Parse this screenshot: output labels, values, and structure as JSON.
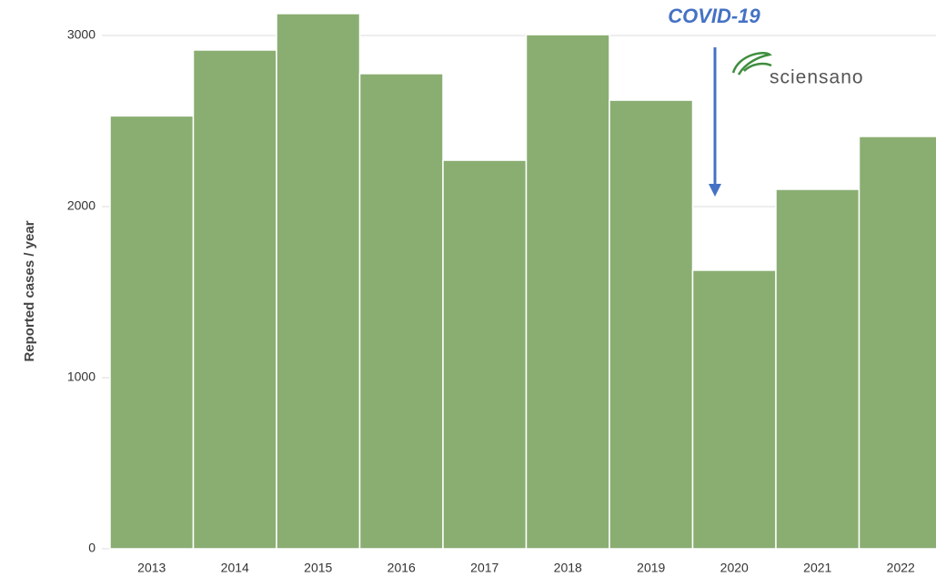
{
  "chart_data": {
    "type": "bar",
    "y_axis_label": "Reported cases / year",
    "annotation": "COVID-19",
    "logo": "sciensano",
    "categories": [
      "2013",
      "2014",
      "2015",
      "2016",
      "2017",
      "2018",
      "2019",
      "2020",
      "2021",
      "2022"
    ],
    "values": [
      2530,
      2915,
      3128,
      2777,
      2271,
      3005,
      2622,
      1628,
      2101,
      2410
    ],
    "color": "#8aae72",
    "ylim": [
      0,
      3200
    ],
    "yticks": [
      0,
      1000,
      2000,
      3000
    ],
    "grid": true
  }
}
